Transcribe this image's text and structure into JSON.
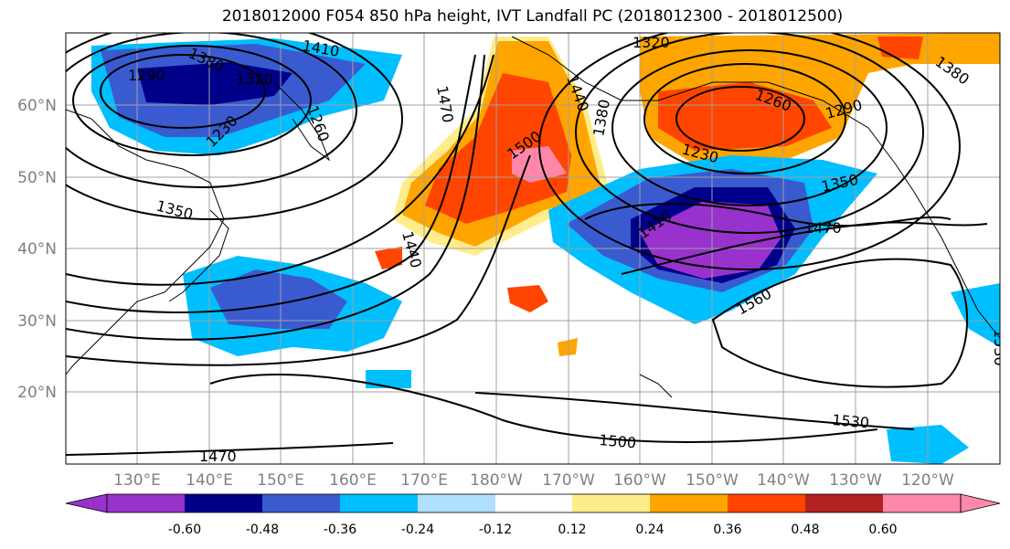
{
  "title": "2018012000 F054 850 hPa height, IVT Landfall PC (2018012300 - 2018012500)",
  "lat_labels": [
    "20°N",
    "30°N",
    "40°N",
    "50°N",
    "60°N"
  ],
  "lon_labels": [
    "130°E",
    "140°E",
    "150°E",
    "160°E",
    "170°E",
    "180°W",
    "170°W",
    "160°W",
    "150°W",
    "140°W",
    "130°W",
    "120°W"
  ],
  "colorbar": {
    "tick_labels": [
      "-0.60",
      "-0.48",
      "-0.36",
      "-0.24",
      "-0.12",
      "0.12",
      "0.24",
      "0.36",
      "0.48",
      "0.60"
    ],
    "colors": [
      "#9932cc",
      "#00008b",
      "#3a5bcf",
      "#00bfff",
      "#b0e0ff",
      "#ffffff",
      "#ffec8b",
      "#ffa500",
      "#ff4500",
      "#b22222",
      "#ff88aa"
    ]
  },
  "contour_labels": [
    {
      "text": "1380"
    },
    {
      "text": "1410"
    },
    {
      "text": "1290"
    },
    {
      "text": "1320"
    },
    {
      "text": "1320"
    },
    {
      "text": "1260"
    },
    {
      "text": "1290"
    },
    {
      "text": "1230"
    },
    {
      "text": "1350"
    },
    {
      "text": "1470"
    },
    {
      "text": "1410"
    },
    {
      "text": "1470"
    },
    {
      "text": "1500"
    },
    {
      "text": "1440"
    },
    {
      "text": "1440"
    },
    {
      "text": "1380"
    },
    {
      "text": "1350"
    },
    {
      "text": "1560"
    },
    {
      "text": "1530"
    },
    {
      "text": "1530"
    },
    {
      "text": "1500"
    },
    {
      "text": "1470"
    },
    {
      "text": "1380"
    },
    {
      "text": "1260"
    },
    {
      "text": "1230"
    }
  ]
}
